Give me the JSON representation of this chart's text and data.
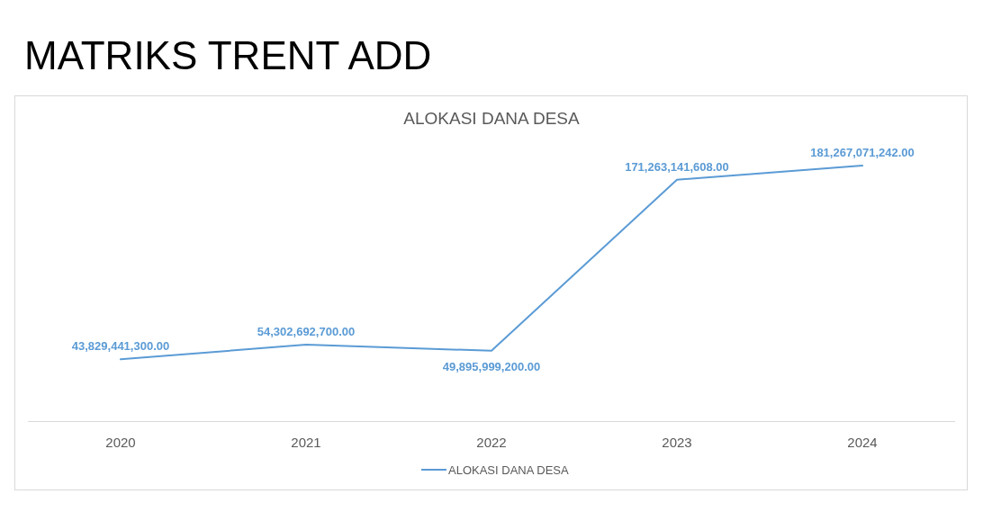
{
  "chart_data": {
    "type": "line",
    "title": "MATRIKS TRENT ADD",
    "subtitle": "ALOKASI DANA DESA",
    "categories": [
      "2020",
      "2021",
      "2022",
      "2023",
      "2024"
    ],
    "series": [
      {
        "name": "ALOKASI DANA DESA",
        "color": "#5b9bd5",
        "values": [
          43829441300,
          54302692700,
          49895999200,
          171263141608,
          181267071242
        ],
        "value_labels": [
          "43,829,441,300.00",
          "54,302,692,700.00",
          "49,895,999,200.00",
          "171,263,141,608.00",
          "181,267,071,242.00"
        ]
      }
    ],
    "legend": "bottom",
    "marker": "none",
    "line_style": "solid",
    "tick_labels": "x"
  }
}
